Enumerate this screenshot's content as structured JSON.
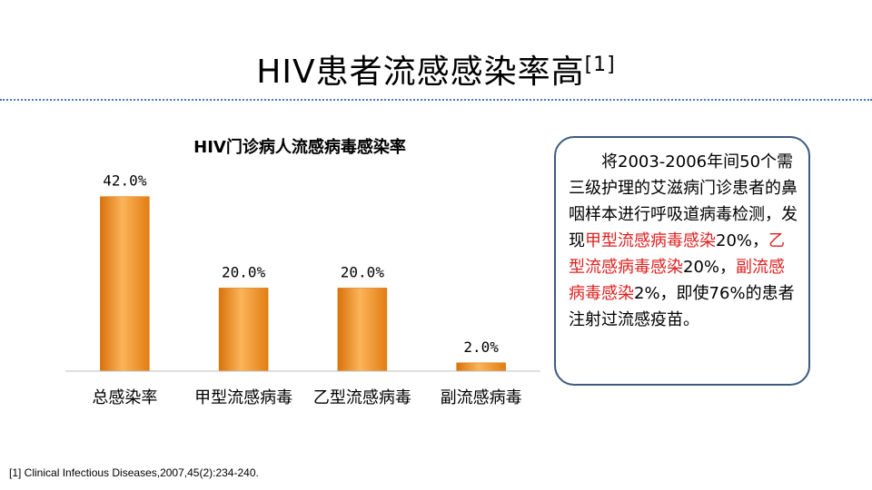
{
  "slide": {
    "title_main": "HIV患者流感感染率高",
    "title_ref": "[1]",
    "callout": {
      "t1": "将2003-2006年间50个需三级护理的艾滋病门诊患者的鼻咽样本进行呼吸道病毒检测，发现",
      "r1": "甲型流感病毒感染",
      "t2": "20%，",
      "r2": "乙型流感病毒感染",
      "t3": "20%，",
      "r3": "副流感病毒感染",
      "t4": "2%，即使76%的患者注射过流感疫苗。"
    },
    "footnote": "[1] Clinical Infectious Diseases,2007,45(2):234-240."
  },
  "chart_data": {
    "type": "bar",
    "title": "HIV门诊病人流感病毒感染率",
    "categories": [
      "总感染率",
      "甲型流感病毒",
      "乙型流感病毒",
      "副流感病毒"
    ],
    "values": [
      42.0,
      20.0,
      20.0,
      2.0
    ],
    "data_labels": [
      "42.0%",
      "20.0%",
      "20.0%",
      "2.0%"
    ],
    "ylim": [
      0,
      50
    ],
    "grid": false,
    "legend": "none",
    "colors": {
      "bar": "#f0901e",
      "bar_light": "#fbb45a",
      "bar_dark": "#d9720a",
      "axis": "#bfbfbf"
    }
  }
}
